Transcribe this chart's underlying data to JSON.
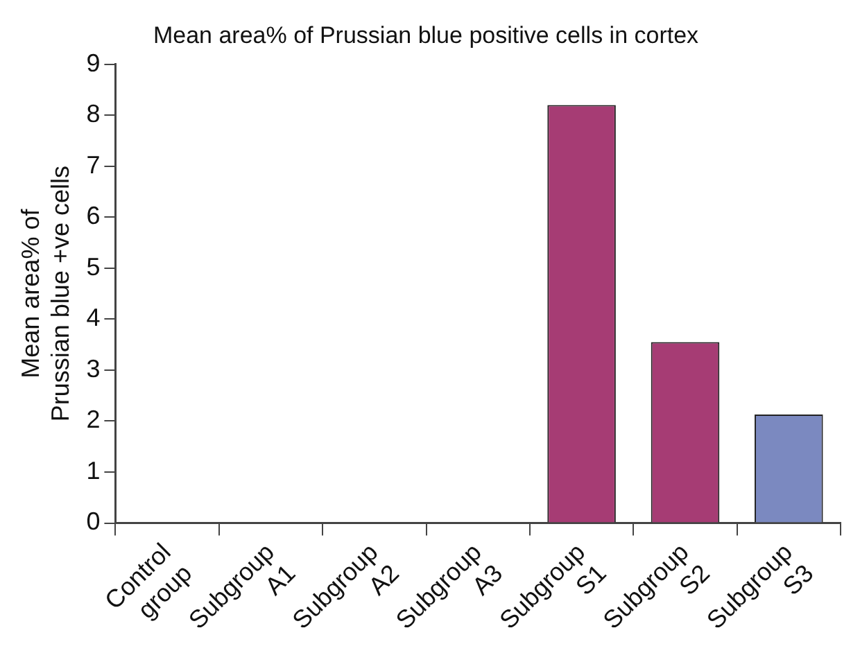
{
  "chart_data": {
    "type": "bar",
    "title": "Mean area% of Prussian blue positive cells in cortex",
    "ylabel": "Mean area% of\nPrussian blue +ve cells",
    "categories": [
      "Control group",
      "Subgroup A1",
      "Subgroup A2",
      "Subgroup A3",
      "Subgroup S1",
      "Subgroup S2",
      "Subgroup S3"
    ],
    "values": [
      0,
      0,
      0,
      0,
      8.2,
      3.55,
      2.13
    ],
    "colors": [
      "#a63c74",
      "#a63c74",
      "#a63c74",
      "#a63c74",
      "#a63c74",
      "#a63c74",
      "#7b89c0"
    ],
    "ylim": [
      0,
      9
    ],
    "yticks": [
      0,
      1,
      2,
      3,
      4,
      5,
      6,
      7,
      8,
      9
    ],
    "grid": false,
    "legend": false
  }
}
